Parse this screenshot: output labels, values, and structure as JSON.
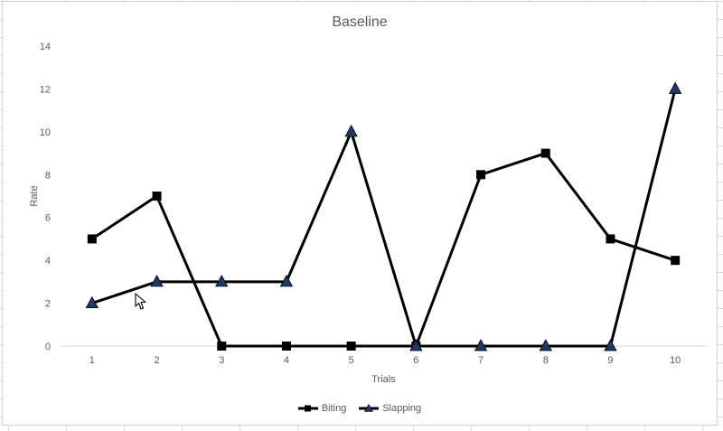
{
  "chart_data": {
    "type": "line",
    "title": "Baseline",
    "xlabel": "Trials",
    "ylabel": "Rate",
    "categories": [
      "1",
      "2",
      "3",
      "4",
      "5",
      "6",
      "7",
      "8",
      "9",
      "10"
    ],
    "ylim": [
      0,
      14
    ],
    "yticks": [
      "0",
      "2",
      "4",
      "6",
      "8",
      "10",
      "12",
      "14"
    ],
    "grid": false,
    "legend_position": "bottom",
    "series": [
      {
        "name": "Biting",
        "marker": "square",
        "color": "#000000",
        "values": [
          5,
          7,
          0,
          0,
          0,
          0,
          8,
          9,
          5,
          4
        ]
      },
      {
        "name": "Slapping",
        "marker": "triangle",
        "color": "#000000",
        "marker_fill": "#1f3864",
        "values": [
          2,
          3,
          3,
          3,
          10,
          0,
          0,
          0,
          0,
          12
        ]
      }
    ]
  }
}
